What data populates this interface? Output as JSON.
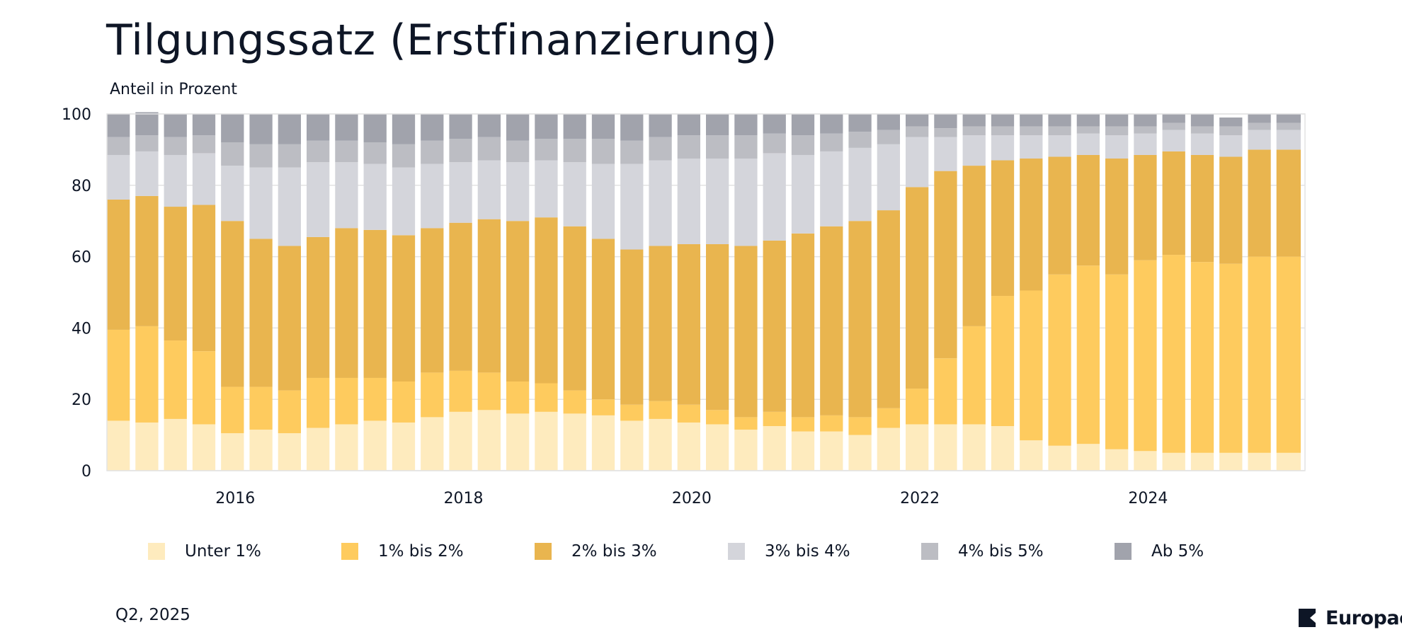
{
  "title": "Tilgungssatz (Erstfinanzierung)",
  "subtitle": "Anteil in Prozent",
  "footer": {
    "date": "Q2, 2025",
    "brand": "Europace"
  },
  "colors": {
    "Unter 1%": "#FEEBBE",
    "1% bis 2%": "#FECB5E",
    "2% bis 3%": "#E9B54F",
    "3% bis 4%": "#D4D5DB",
    "4% bis 5%": "#BCBDC3",
    "Ab 5%": "#A1A3AC",
    "grid": "#E3E3E3",
    "text": "#0E1626"
  },
  "chart_data": {
    "type": "bar",
    "stacked": true,
    "ylabel": "Anteil in Prozent",
    "ylim": [
      0,
      100
    ],
    "yticks": [
      0,
      20,
      40,
      60,
      80,
      100
    ],
    "xtick_labels": [
      "2016",
      "2018",
      "2020",
      "2022",
      "2024"
    ],
    "xtick_positions": [
      4.5,
      12.5,
      20.5,
      28.5,
      36.5
    ],
    "grid": true,
    "legend_position": "bottom",
    "categories": [
      "Q1 2015",
      "Q2 2015",
      "Q3 2015",
      "Q4 2015",
      "Q1 2016",
      "Q2 2016",
      "Q3 2016",
      "Q4 2016",
      "Q1 2017",
      "Q2 2017",
      "Q3 2017",
      "Q4 2017",
      "Q1 2018",
      "Q2 2018",
      "Q3 2018",
      "Q4 2018",
      "Q1 2019",
      "Q2 2019",
      "Q3 2019",
      "Q4 2019",
      "Q1 2020",
      "Q2 2020",
      "Q3 2020",
      "Q4 2020",
      "Q1 2021",
      "Q2 2021",
      "Q3 2021",
      "Q4 2021",
      "Q1 2022",
      "Q2 2022",
      "Q3 2022",
      "Q4 2022",
      "Q1 2023",
      "Q2 2023",
      "Q3 2023",
      "Q4 2023",
      "Q1 2024",
      "Q2 2024",
      "Q3 2024",
      "Q4 2024",
      "Q1 2025",
      "Q2 2025"
    ],
    "series": [
      {
        "name": "Unter 1%",
        "values": [
          14,
          13.5,
          14.5,
          13,
          10.5,
          11.5,
          10.5,
          12,
          13,
          14,
          13.5,
          15,
          16.5,
          17,
          16,
          16.5,
          16,
          15.5,
          14,
          14.5,
          13.5,
          13,
          11.5,
          12.5,
          11,
          11,
          10,
          12,
          13,
          13,
          13,
          12.5,
          8.5,
          7,
          7.5,
          6,
          5.5,
          5,
          5,
          5,
          5,
          5
        ]
      },
      {
        "name": "1% bis 2%",
        "values": [
          25.5,
          27,
          22,
          20.5,
          13,
          12,
          12,
          14,
          13,
          12,
          11.5,
          12.5,
          11.5,
          10.5,
          9,
          8,
          6.5,
          4.5,
          4.5,
          5,
          5,
          4,
          3.5,
          4,
          4,
          4.5,
          5,
          5.5,
          10,
          18.5,
          27.5,
          36.5,
          42,
          48,
          50,
          49,
          53.5,
          55.5,
          53.5,
          53,
          55,
          55
        ]
      },
      {
        "name": "2% bis 3%",
        "values": [
          36.5,
          36.5,
          37.5,
          41,
          46.5,
          41.5,
          40.5,
          39.5,
          42,
          41.5,
          41,
          40.5,
          41.5,
          43,
          45,
          46.5,
          46,
          45,
          43.5,
          43.5,
          45,
          46.5,
          48,
          48,
          51.5,
          53,
          55,
          55.5,
          56.5,
          52.5,
          45,
          38,
          37,
          33,
          31,
          32.5,
          29.5,
          29,
          30,
          30,
          30,
          30
        ]
      },
      {
        "name": "3% bis 4%",
        "values": [
          12.5,
          12.5,
          14.5,
          14.5,
          15.5,
          20,
          22,
          21,
          18.5,
          18.5,
          19,
          18,
          17,
          16.5,
          16.5,
          16,
          18,
          21,
          24,
          24,
          24,
          24,
          24.5,
          24.5,
          22,
          21,
          20.5,
          18.5,
          14,
          9.5,
          8.5,
          7,
          6.5,
          6,
          6,
          6.5,
          6,
          6,
          6,
          6,
          5.5,
          5.5
        ]
      },
      {
        "name": "4% bis 5%",
        "values": [
          5,
          4.5,
          5,
          5,
          6.5,
          6.5,
          6.5,
          6,
          6,
          6,
          6.5,
          6.5,
          6.5,
          6.5,
          6,
          6,
          6.5,
          7,
          6.5,
          6.5,
          6.5,
          6.5,
          6.5,
          5.5,
          5.5,
          5,
          4.5,
          4,
          3,
          2.5,
          2.5,
          2.5,
          2.5,
          2.5,
          2,
          2.5,
          2,
          2,
          2,
          2.5,
          2,
          2
        ]
      },
      {
        "name": "Ab 5%",
        "values": [
          6.5,
          6.5,
          6.5,
          6,
          8,
          8.5,
          8.5,
          7.5,
          7.5,
          8,
          8.5,
          7.5,
          7,
          6.5,
          7.5,
          7,
          7,
          7,
          7.5,
          6.5,
          6,
          6,
          6,
          5.5,
          6,
          5.5,
          5,
          4.5,
          3.5,
          4,
          3.5,
          3.5,
          3.5,
          3.5,
          3.5,
          3.5,
          3.5,
          2.5,
          3.5,
          2.5,
          2.5,
          2.5
        ]
      }
    ]
  }
}
